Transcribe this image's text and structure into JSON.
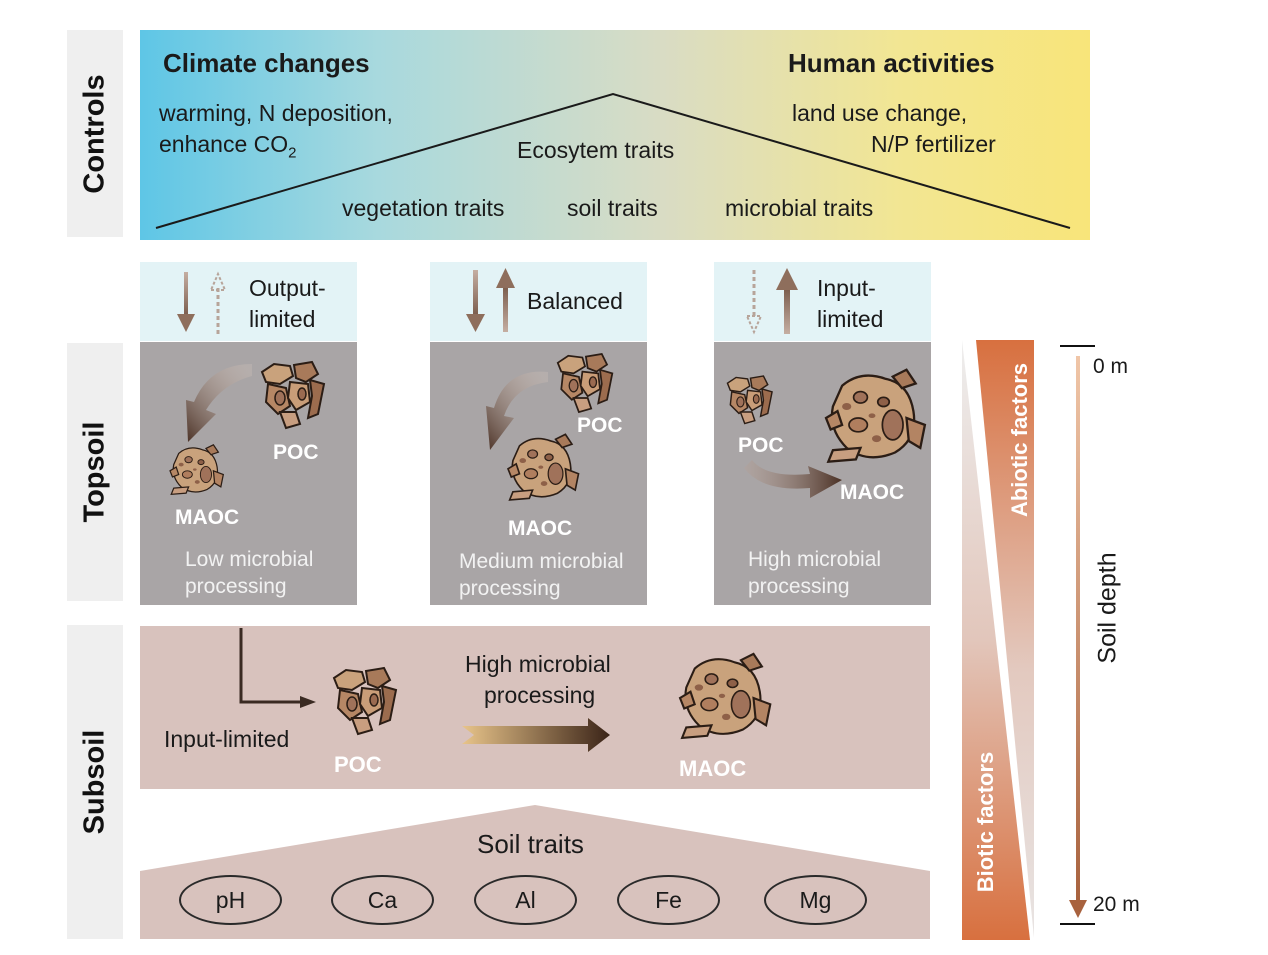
{
  "sidebar": {
    "controls": "Controls",
    "topsoil": "Topsoil",
    "subsoil": "Subsoil"
  },
  "controls": {
    "climate_title": "Climate changes",
    "climate_line1": "warming, N deposition,",
    "climate_line2": "enhance CO",
    "climate_sub": "2",
    "human_title": "Human activities",
    "human_line1": "land use change,",
    "human_line2": "N/P fertilizer",
    "ecosystem": "Ecosytem traits",
    "vegetation": "vegetation traits",
    "soil": "soil traits",
    "microbial": "microbial traits"
  },
  "topsoil": {
    "panels": [
      {
        "flux_line1": "Output-",
        "flux_line2": "limited",
        "poc": "POC",
        "maoc": "MAOC",
        "proc_line1": "Low microbial",
        "proc_line2": "processing"
      },
      {
        "flux_line1": "Balanced",
        "poc": "POC",
        "maoc": "MAOC",
        "proc_line1": "Medium microbial",
        "proc_line2": "processing"
      },
      {
        "flux_line1": "Input-",
        "flux_line2": "limited",
        "poc": "POC",
        "maoc": "MAOC",
        "proc_line1": "High microbial",
        "proc_line2": "processing"
      }
    ]
  },
  "subsoil": {
    "input": "Input-limited",
    "proc_line1": "High microbial",
    "proc_line2": "processing",
    "poc": "POC",
    "maoc": "MAOC"
  },
  "soil_traits": {
    "title": "Soil traits",
    "items": [
      "pH",
      "Ca",
      "Al",
      "Fe",
      "Mg"
    ]
  },
  "factors": {
    "abiotic": "Abiotic factors",
    "biotic": "Biotic factors"
  },
  "depth": {
    "label": "Soil depth",
    "top": "0 m",
    "bottom": "20 m"
  },
  "colors": {
    "depth_arrow": "#c98a66",
    "abiotic_fill": "#d8703f",
    "flux_box": "#e3f3f6",
    "topsoil_box": "#a9a5a6",
    "subsoil_box": "#d8c2bd"
  }
}
